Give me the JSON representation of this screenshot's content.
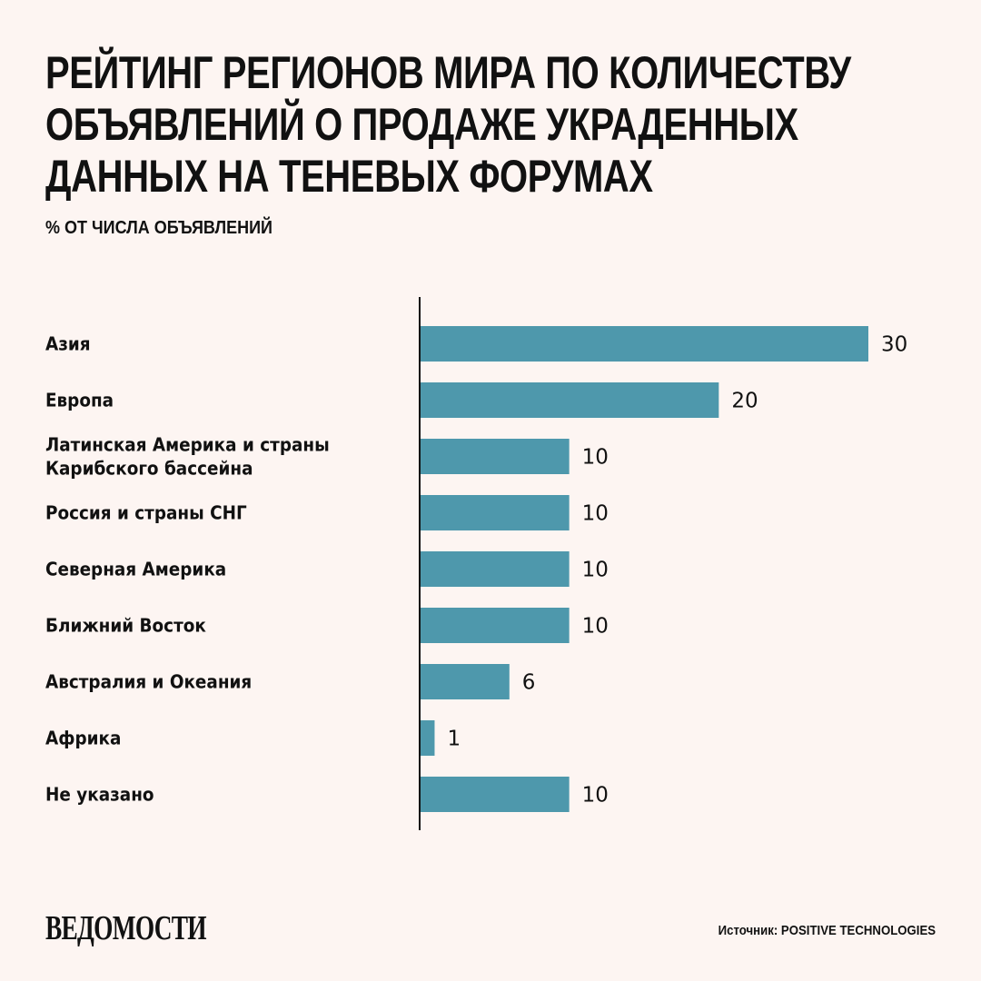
{
  "chart_data": {
    "type": "bar",
    "orientation": "horizontal",
    "title_lines": [
      "РЕЙТИНГ РЕГИОНОВ МИРА ПО КОЛИЧЕСТВУ",
      "ОБЪЯВЛЕНИЙ О ПРОДАЖЕ УКРАДЕННЫХ",
      "ДАННЫХ НА ТЕНЕВЫХ ФОРУМАХ"
    ],
    "subtitle": "% ОТ ЧИСЛА ОБЪЯВЛЕНИЙ",
    "categories": [
      [
        "Азия"
      ],
      [
        "Европа"
      ],
      [
        "Латинская Америка и страны",
        "Карибского бассейна"
      ],
      [
        "Россия и страны СНГ"
      ],
      [
        "Северная Америка"
      ],
      [
        "Ближний Восток"
      ],
      [
        "Австралия и Океания"
      ],
      [
        "Африка"
      ],
      [
        "Не указано"
      ]
    ],
    "values": [
      30,
      20,
      10,
      10,
      10,
      10,
      6,
      1,
      10
    ],
    "value_labels": [
      "30",
      "20",
      "10",
      "10",
      "10",
      "10",
      "6",
      "1",
      "10"
    ],
    "xlim": [
      0,
      30
    ],
    "grid": false,
    "bar_color": "#4e98ac"
  },
  "footer": {
    "logo": "ВЕДОМОСТИ",
    "source": "Источник:  POSITIVE TECHNOLOGIES"
  }
}
